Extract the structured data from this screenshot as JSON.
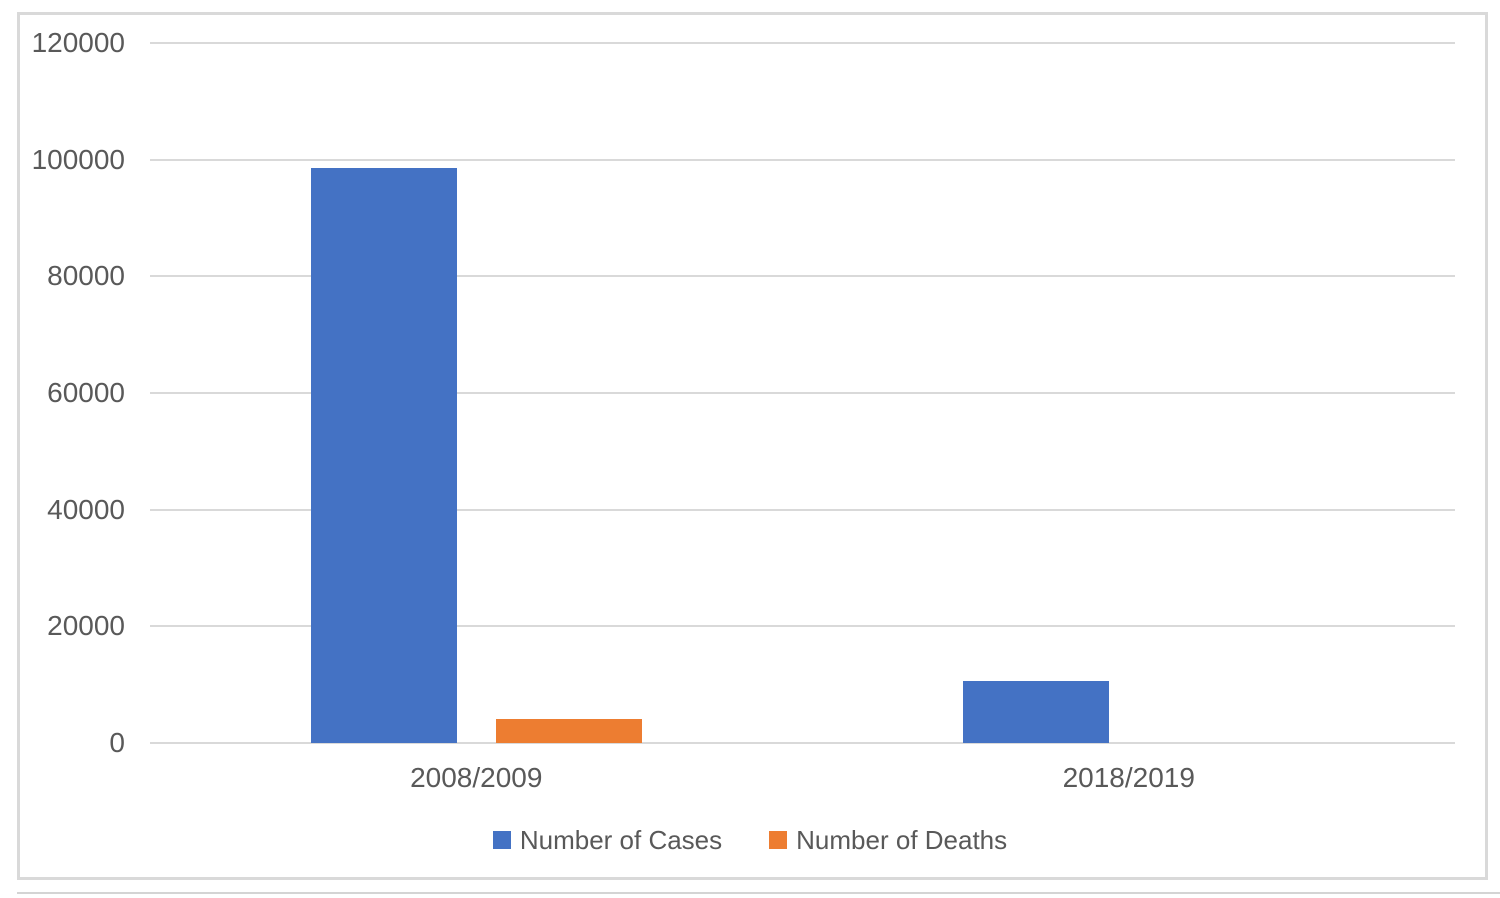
{
  "page": {
    "background": "#FFFFFF"
  },
  "chart_data": {
    "type": "bar",
    "title": "",
    "categories": [
      "2008/2009",
      "2018/2019"
    ],
    "series": [
      {
        "name": "Number of Cases",
        "color": "#4472C4",
        "values": [
          98500,
          10600
        ]
      },
      {
        "name": "Number of Deaths",
        "color": "#ED7D31",
        "values": [
          4200,
          0
        ]
      }
    ],
    "ylim": [
      0,
      120000
    ],
    "ytick_interval": 20000,
    "ytick_labels": [
      "0",
      "20000",
      "40000",
      "60000",
      "80000",
      "100000",
      "120000"
    ],
    "xlabel": "",
    "ylabel": "",
    "grid": true,
    "legend_position": "bottom",
    "colors": {
      "gridline": "#D9D9D9",
      "frame_border": "#D9D9D9",
      "text": "#595959",
      "bottom_rule": "#D4D4D4"
    }
  }
}
